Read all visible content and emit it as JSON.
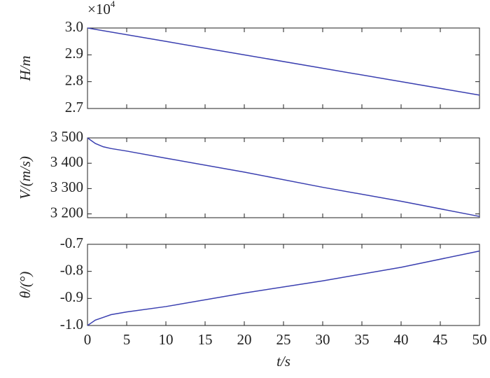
{
  "chart_data": [
    {
      "type": "line",
      "ylabel": "H/m",
      "multiplier": {
        "base": "×10",
        "exponent": "4"
      },
      "x": [
        0,
        10,
        20,
        30,
        40,
        50
      ],
      "series": [
        {
          "color": "#3a3fb0",
          "values": [
            3.0,
            2.95,
            2.9,
            2.85,
            2.8,
            2.75
          ]
        }
      ],
      "xlim": [
        0,
        50
      ],
      "xticks": [
        0,
        5,
        10,
        15,
        20,
        25,
        30,
        35,
        40,
        45,
        50
      ],
      "ylim": [
        2.7,
        3.0
      ],
      "yticks": [
        2.7,
        2.8,
        2.9,
        {
          "value": 3.0,
          "label": "3.0"
        }
      ]
    },
    {
      "type": "line",
      "ylabel": "V/(m/s)",
      "x": [
        0,
        1,
        2,
        3,
        5,
        10,
        20,
        30,
        40,
        50
      ],
      "series": [
        {
          "color": "#3a3fb0",
          "values": [
            3500,
            3478,
            3465,
            3458,
            3448,
            3420,
            3365,
            3305,
            3250,
            3190
          ]
        }
      ],
      "xlim": [
        0,
        50
      ],
      "xticks": [
        0,
        5,
        10,
        15,
        20,
        25,
        30,
        35,
        40,
        45,
        50
      ],
      "ylim": [
        3185,
        3500
      ],
      "yticks": [
        {
          "value": 3200,
          "label": "3 200"
        },
        {
          "value": 3300,
          "label": "3 300"
        },
        {
          "value": 3400,
          "label": "3 400"
        },
        {
          "value": 3500,
          "label": "3 500"
        }
      ]
    },
    {
      "type": "line",
      "ylabel": "θ/(°)",
      "xlabel": "t/s",
      "x": [
        0,
        1,
        2,
        3,
        5,
        10,
        20,
        30,
        40,
        50
      ],
      "series": [
        {
          "color": "#3a3fb0",
          "values": [
            -1.0,
            -0.98,
            -0.97,
            -0.96,
            -0.95,
            -0.93,
            -0.88,
            -0.835,
            -0.785,
            -0.725
          ]
        }
      ],
      "xlim": [
        0,
        50
      ],
      "xticks": [
        0,
        5,
        10,
        15,
        20,
        25,
        30,
        35,
        40,
        45,
        50
      ],
      "ylim": [
        -1.0,
        -0.7
      ],
      "yticks": [
        {
          "value": -1.0,
          "label": "-1.0"
        },
        -0.9,
        -0.8,
        -0.7
      ]
    }
  ]
}
